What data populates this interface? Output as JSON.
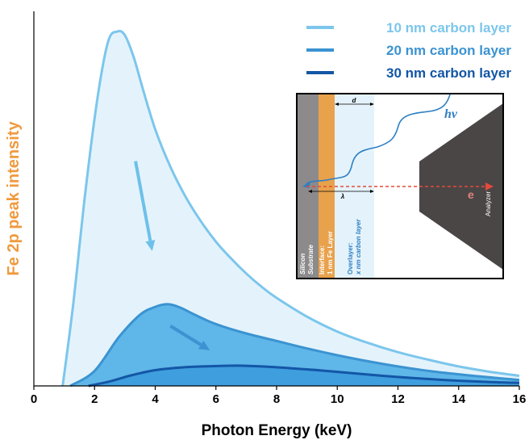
{
  "chart_data": {
    "type": "area",
    "xlabel": "Photon Energy (keV)",
    "ylabel": "Fe 2p peak intensity",
    "xlim": [
      0,
      16
    ],
    "ylim": [
      0,
      1
    ],
    "xticks": [
      0,
      2,
      4,
      6,
      8,
      10,
      12,
      14,
      16
    ],
    "legend_position": "top-right",
    "series": [
      {
        "name": "10 nm carbon layer",
        "color": "#7cc6ec",
        "fill": "#e4f3fb",
        "x": [
          0.95,
          1.3,
          1.7,
          2.1,
          2.45,
          2.75,
          3.0,
          3.3,
          3.6,
          4.0,
          4.5,
          5.0,
          5.5,
          6.0,
          6.5,
          7.0,
          7.5,
          8.0,
          9.0,
          10.0,
          11.0,
          12.0,
          13.0,
          14.0,
          15.0,
          16.0
        ],
        "y": [
          0.0,
          0.22,
          0.52,
          0.77,
          0.92,
          0.946,
          0.936,
          0.875,
          0.79,
          0.685,
          0.585,
          0.505,
          0.44,
          0.385,
          0.34,
          0.3,
          0.265,
          0.235,
          0.185,
          0.145,
          0.115,
          0.09,
          0.07,
          0.052,
          0.038,
          0.027
        ]
      },
      {
        "name": "20 nm carbon layer",
        "color": "#3b93d1",
        "fill": "#5fb6e8",
        "x": [
          1.2,
          2.0,
          2.8,
          3.5,
          4.0,
          4.4,
          4.8,
          5.3,
          6.0,
          7.0,
          8.0,
          9.0,
          10.0,
          11.0,
          12.0,
          13.0,
          14.0,
          15.0,
          16.0
        ],
        "y": [
          0.0,
          0.04,
          0.13,
          0.19,
          0.211,
          0.218,
          0.21,
          0.19,
          0.165,
          0.14,
          0.12,
          0.1,
          0.082,
          0.066,
          0.052,
          0.04,
          0.031,
          0.023,
          0.016
        ]
      },
      {
        "name": "30 nm carbon layer",
        "color": "#1356a6",
        "fill": "#3f9ede",
        "x": [
          1.8,
          2.5,
          3.2,
          4.0,
          5.0,
          6.0,
          6.7,
          7.5,
          8.5,
          9.5,
          10.5,
          11.5,
          12.5,
          13.5,
          14.5,
          15.5,
          16.0
        ],
        "y": [
          0.0,
          0.012,
          0.028,
          0.042,
          0.05,
          0.053,
          0.054,
          0.052,
          0.047,
          0.041,
          0.034,
          0.027,
          0.021,
          0.016,
          0.012,
          0.009,
          0.008
        ]
      }
    ],
    "annotations": [
      {
        "type": "arrow",
        "x1": 3.35,
        "y1": 0.6,
        "x2": 3.9,
        "y2": 0.36,
        "color": "#6ec0ea"
      },
      {
        "type": "arrow",
        "x1": 4.5,
        "y1": 0.16,
        "x2": 5.8,
        "y2": 0.095,
        "color": "#3b93d1"
      }
    ]
  },
  "inset": {
    "d_label": "d",
    "lambda_label": "λ",
    "hv_label": "hν",
    "e_label": "e",
    "analyzer_label": "Analyzer",
    "silicon_label_1": "Silicon",
    "silicon_label_2": "Substrate",
    "interface_label_1": "Interface:",
    "interface_label_2": "1 nm Fe Layer",
    "overlayer_label_1": "Overlayer:",
    "overlayer_label_2": "x nm carbon layer",
    "colors": {
      "substrate": "#8c8a8a",
      "interface": "#e8a24c",
      "overlayer": "#e4f3fb",
      "analyzer": "#4a4646",
      "photon": "#2e7fc4",
      "electron": "#e34a3c",
      "e_text": "#e0837a",
      "overlayer_text": "#2e7fc4"
    }
  },
  "ylabel_color": "#f09a3e"
}
